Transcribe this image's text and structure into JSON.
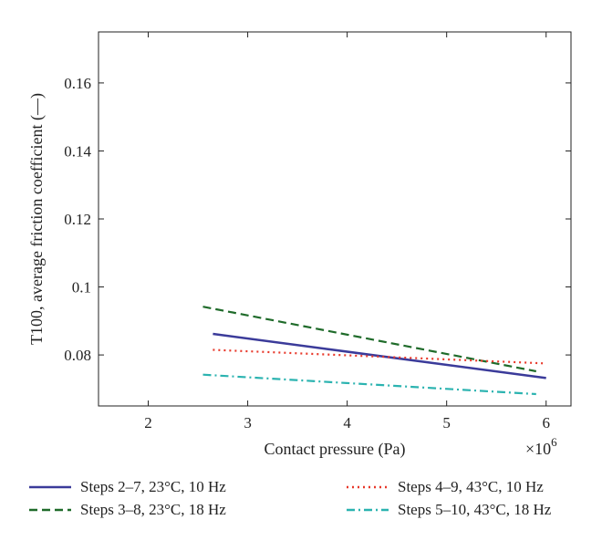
{
  "chart_data": {
    "type": "line",
    "xlabel": "Contact pressure (Pa)",
    "ylabel": "T100, average friction coefficient (—)",
    "x_multiplier": "×10",
    "x_multiplier_exp": "6",
    "xlim": [
      1.5,
      6.25
    ],
    "ylim": [
      0.065,
      0.175
    ],
    "xticks": [
      2,
      3,
      4,
      5,
      6
    ],
    "yticks": [
      0.08,
      0.1,
      0.12,
      0.14,
      0.16
    ],
    "xtick_labels": [
      "2",
      "3",
      "4",
      "5",
      "6"
    ],
    "ytick_labels": [
      "0.08",
      "0.1",
      "0.12",
      "0.14",
      "0.16"
    ],
    "grid": false,
    "legend_position": "bottom, below axes, two columns",
    "series": [
      {
        "name": "Steps 2–7, 23°C, 10 Hz",
        "color": "#3b3b9a",
        "style": "solid",
        "x": [
          2.65,
          6.0
        ],
        "y": [
          0.0862,
          0.0732
        ]
      },
      {
        "name": "Steps 3–8, 23°C, 18 Hz",
        "color": "#1f6b2a",
        "style": "dashed",
        "x": [
          2.55,
          5.9
        ],
        "y": [
          0.0942,
          0.0752
        ]
      },
      {
        "name": "Steps 4–9, 43°C, 10 Hz",
        "color": "#e8382a",
        "style": "dotted",
        "x": [
          2.65,
          6.0
        ],
        "y": [
          0.0815,
          0.0775
        ]
      },
      {
        "name": "Steps 5–10, 43°C, 18 Hz",
        "color": "#2bb3b0",
        "style": "dashdot",
        "x": [
          2.55,
          5.9
        ],
        "y": [
          0.0742,
          0.0685
        ]
      }
    ]
  }
}
